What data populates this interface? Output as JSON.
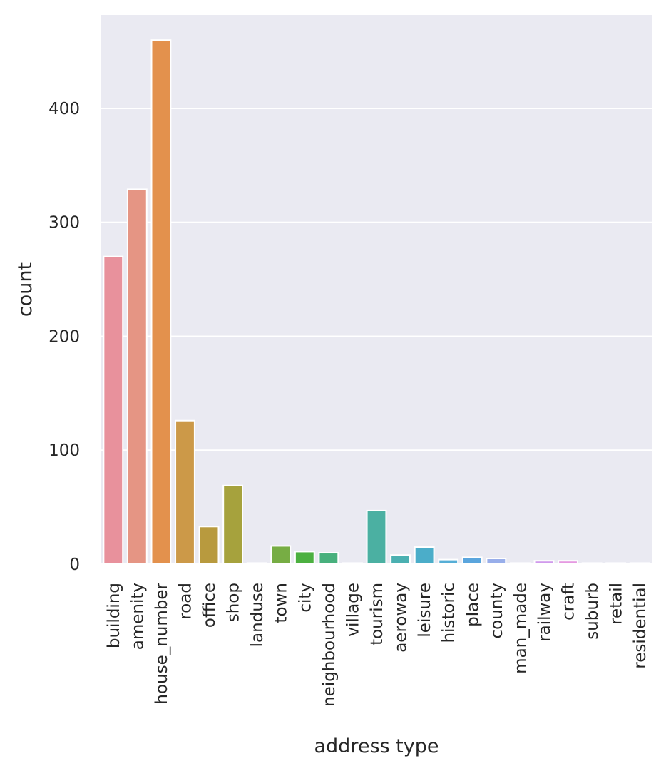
{
  "chart_data": {
    "type": "bar",
    "xlabel": "address type",
    "ylabel": "count",
    "ylim": [
      0,
      482
    ],
    "yticks": [
      0,
      100,
      200,
      300,
      400
    ],
    "grid": true,
    "categories": [
      "building",
      "amenity",
      "house_number",
      "road",
      "office",
      "shop",
      "landuse",
      "town",
      "city",
      "neighbourhood",
      "village",
      "tourism",
      "aeroway",
      "leisure",
      "historic",
      "place",
      "county",
      "man_made",
      "railway",
      "craft",
      "suburb",
      "retail",
      "residential"
    ],
    "values": [
      270,
      329,
      460,
      126,
      33,
      69,
      1,
      16,
      11,
      10,
      1,
      47,
      8,
      15,
      4,
      6,
      5,
      1,
      3,
      3,
      1,
      1,
      1
    ],
    "colors": [
      "#e8919c",
      "#e59584",
      "#e3914d",
      "#cc9948",
      "#b89a3e",
      "#a6a23d",
      "#92a33c",
      "#77ad44",
      "#4cb040",
      "#48b07d",
      "#4aaf97",
      "#4bb0a2",
      "#4bb0b1",
      "#4badc9",
      "#56aed6",
      "#5aa5dd",
      "#98aeea",
      "#b7a3e6",
      "#d09aec",
      "#e599e1",
      "#ea95d6",
      "#e994c8",
      "#ea97b8"
    ]
  }
}
